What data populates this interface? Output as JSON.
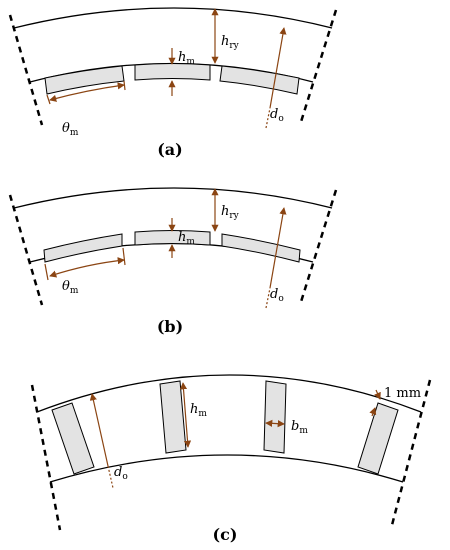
{
  "panels": [
    {
      "caption": "(a)",
      "h_m": {
        "base": "h",
        "sub": "m"
      },
      "h_ry": {
        "base": "h",
        "sub": "ry"
      },
      "theta_m": {
        "base": "θ",
        "sub": "m"
      },
      "d_o": {
        "base": "d",
        "sub": "o"
      }
    },
    {
      "caption": "(b)",
      "h_m": {
        "base": "h",
        "sub": "m"
      },
      "h_ry": {
        "base": "h",
        "sub": "ry"
      },
      "theta_m": {
        "base": "θ",
        "sub": "m"
      },
      "d_o": {
        "base": "d",
        "sub": "o"
      }
    },
    {
      "caption": "(c)",
      "h_m": {
        "base": "h",
        "sub": "m"
      },
      "b_m": {
        "base": "b",
        "sub": "m"
      },
      "d_o": {
        "base": "d",
        "sub": "o"
      },
      "gap": "1 mm"
    }
  ]
}
